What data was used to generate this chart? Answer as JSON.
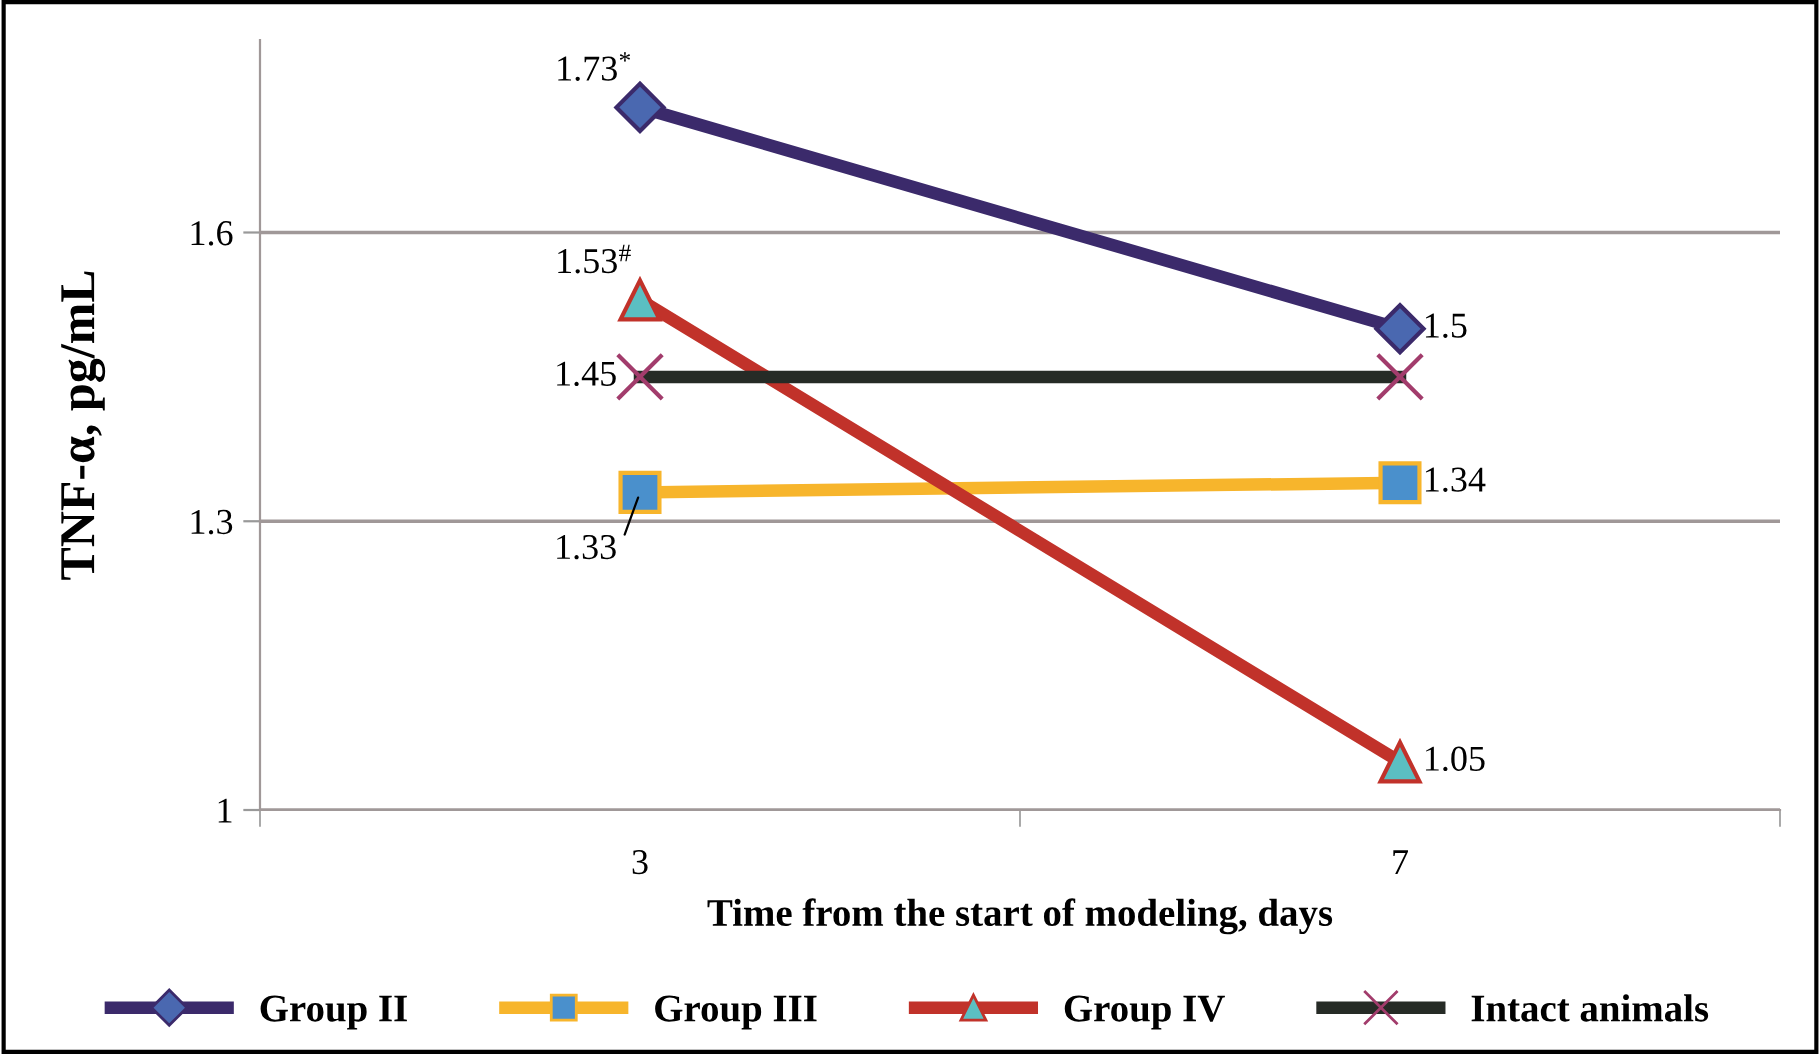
{
  "chart_data": {
    "type": "line",
    "xlabel": "Time from the start of modeling, days",
    "ylabel": "TNF-α, pg/mL",
    "categories": [
      "3",
      "7"
    ],
    "ylim": [
      1,
      1.8
    ],
    "yticks": [
      1,
      1.3,
      1.6
    ],
    "grid": "y",
    "legend": "bottom",
    "series": [
      {
        "name": "Group II",
        "color": "#3b2a6b",
        "colors": [
          "#4a68b0",
          "#4a68b0"
        ],
        "marker": "diamond",
        "values": [
          1.73,
          1.5
        ],
        "value_labels": [
          "1.73$^{*}$",
          "1.5"
        ]
      },
      {
        "name": "Group III",
        "color": "#f7b52c",
        "colors": [
          "#4a90cc",
          "#4a90cc"
        ],
        "marker": "square",
        "values": [
          1.33,
          1.34
        ],
        "value_labels": [
          "1.33",
          "1.34"
        ]
      },
      {
        "name": "Group IV",
        "color": "#c1322a",
        "colors": [
          "#5bbfc2",
          "#5bbfc2"
        ],
        "marker": "triangle",
        "values": [
          1.53,
          1.05
        ],
        "value_labels": [
          "1.53$^{#}$",
          "1.05"
        ]
      },
      {
        "name": "Intact animals",
        "color": "#262b26",
        "colors": [
          "#a23c6c",
          "#a23c6c"
        ],
        "marker": "cross",
        "values": [
          1.45,
          1.45
        ],
        "value_labels": [
          "1.45",
          null
        ]
      }
    ]
  }
}
